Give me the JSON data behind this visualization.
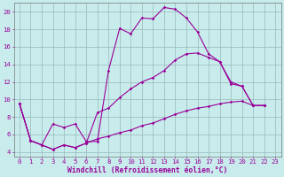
{
  "xlabel": "Windchill (Refroidissement éolien,°C)",
  "bg_color": "#c8ecec",
  "line_color": "#990099",
  "xlim": [
    -0.5,
    23.5
  ],
  "ylim": [
    3.5,
    21
  ],
  "yticks": [
    4,
    6,
    8,
    10,
    12,
    14,
    16,
    18,
    20
  ],
  "xticks": [
    0,
    1,
    2,
    3,
    4,
    5,
    6,
    7,
    8,
    9,
    10,
    11,
    12,
    13,
    14,
    15,
    16,
    17,
    18,
    19,
    20,
    21,
    22,
    23
  ],
  "line1_x": [
    0,
    1,
    2,
    3,
    4,
    5,
    6,
    7,
    8,
    9,
    10,
    11,
    12,
    13,
    14,
    15,
    16,
    17,
    18,
    19,
    20,
    21,
    22
  ],
  "line1_y": [
    9.5,
    5.3,
    4.8,
    7.2,
    6.8,
    7.2,
    5.2,
    5.2,
    13.3,
    18.1,
    17.5,
    19.3,
    19.2,
    20.5,
    20.3,
    19.3,
    17.7,
    15.2,
    14.3,
    11.8,
    11.5,
    9.3,
    9.3
  ],
  "line2_x": [
    0,
    1,
    2,
    3,
    4,
    5,
    6,
    7,
    8,
    9,
    10,
    11,
    12,
    13,
    14,
    15,
    16,
    17,
    18,
    19,
    20,
    21,
    22
  ],
  "line2_y": [
    9.5,
    5.3,
    4.8,
    4.3,
    4.8,
    4.5,
    5.0,
    8.5,
    9.0,
    10.2,
    11.2,
    12.0,
    12.5,
    13.3,
    14.5,
    15.2,
    15.3,
    14.8,
    14.3,
    12.0,
    11.5,
    9.3,
    9.3
  ],
  "line3_x": [
    0,
    1,
    2,
    3,
    4,
    5,
    6,
    7,
    8,
    9,
    10,
    11,
    12,
    13,
    14,
    15,
    16,
    17,
    18,
    19,
    20,
    21,
    22
  ],
  "line3_y": [
    9.5,
    5.3,
    4.8,
    4.3,
    4.8,
    4.5,
    5.0,
    5.5,
    5.8,
    6.2,
    6.5,
    7.0,
    7.3,
    7.8,
    8.3,
    8.7,
    9.0,
    9.2,
    9.5,
    9.7,
    9.8,
    9.3,
    9.3
  ],
  "grid_color": "#9ab8b8",
  "axis_color": "#990099",
  "tick_color": "#990099",
  "xlabel_color": "#990099",
  "label_fontsize": 5.8,
  "tick_fontsize": 5.2
}
